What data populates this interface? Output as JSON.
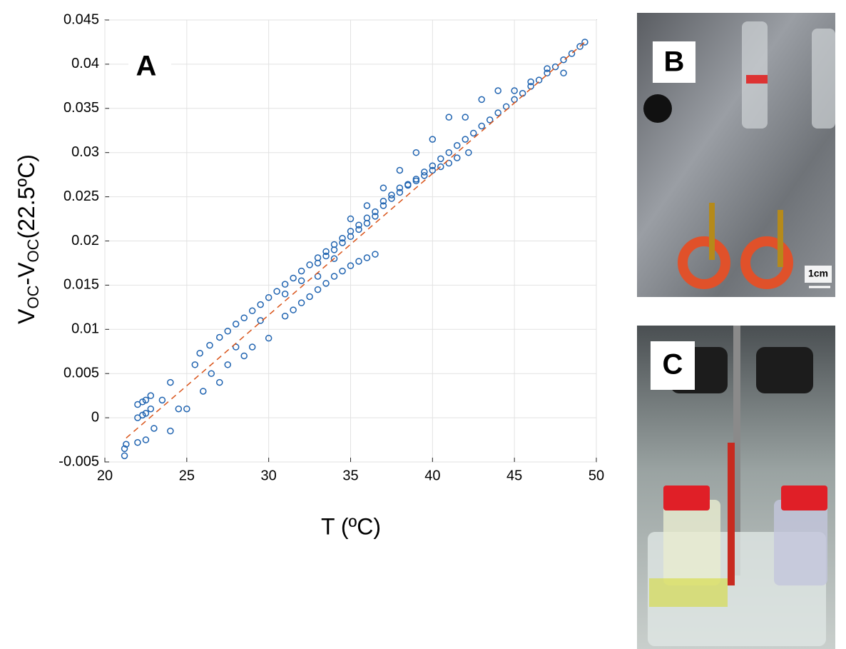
{
  "chart_data": {
    "type": "scatter",
    "annotations": [
      "A"
    ],
    "x_label": "T (ºC)",
    "y_label_parts": [
      "V",
      "OC",
      "-V",
      "OC",
      "(22.5ºC)"
    ],
    "xlim": [
      20,
      50
    ],
    "xticks": [
      20,
      25,
      30,
      35,
      40,
      45,
      50
    ],
    "ylim": [
      -0.005,
      0.045
    ],
    "yticks": [
      -0.005,
      0,
      0.005,
      0.01,
      0.015,
      0.02,
      0.025,
      0.03,
      0.035,
      0.04,
      0.045
    ],
    "grid": true,
    "series": [
      {
        "type": "scatter",
        "color": "#1f63b0",
        "x": [
          25.8,
          26.4,
          27,
          27.5,
          28,
          28.5,
          29,
          29.5,
          30,
          30.5,
          31,
          31.5,
          32,
          32.5,
          33,
          33.5,
          34,
          34.5,
          35,
          35.5,
          36,
          36.5,
          37,
          37.5,
          38,
          38.5,
          39,
          39.5,
          40,
          40.5,
          41,
          41.5,
          42,
          42.5,
          43,
          43.5,
          44,
          44.5,
          45,
          45.5,
          46,
          46.5,
          47,
          47.5,
          48,
          48.5,
          49,
          49.3,
          33,
          33.5,
          34,
          34.5,
          35,
          35.5,
          36,
          36.5,
          37,
          37.5,
          38,
          38.5,
          39,
          39.5,
          40,
          40.5,
          41,
          41.5,
          42.2,
          31,
          31.5,
          32,
          32.5,
          33,
          33.5,
          34,
          34.5,
          35,
          35.5,
          36,
          36.5,
          21.2,
          21.2,
          21.3,
          22,
          22.3,
          22.5,
          22.8,
          22,
          22.3,
          22.5,
          22.8,
          22,
          22.5,
          23,
          23.5,
          24,
          24,
          24.5,
          25,
          25.5,
          26,
          26.5,
          27,
          27.5,
          28,
          28.5,
          29,
          29.5,
          30,
          31,
          32,
          33,
          34,
          35,
          36,
          37,
          38,
          39,
          40,
          41,
          42,
          43,
          44,
          45,
          46,
          47,
          48
        ],
        "values": [
          0.0073,
          0.0082,
          0.0091,
          0.0098,
          0.0106,
          0.0113,
          0.0121,
          0.0128,
          0.0136,
          0.0143,
          0.0151,
          0.0158,
          0.0166,
          0.0173,
          0.0181,
          0.0188,
          0.0196,
          0.0203,
          0.0211,
          0.0218,
          0.0226,
          0.0233,
          0.024,
          0.0248,
          0.0255,
          0.0263,
          0.027,
          0.0278,
          0.0285,
          0.0293,
          0.03,
          0.0308,
          0.0315,
          0.0322,
          0.033,
          0.0337,
          0.0345,
          0.0352,
          0.036,
          0.0367,
          0.0375,
          0.0382,
          0.039,
          0.0397,
          0.0405,
          0.0412,
          0.042,
          0.0425,
          0.0175,
          0.0183,
          0.019,
          0.0198,
          0.0205,
          0.0213,
          0.022,
          0.0228,
          0.0245,
          0.0252,
          0.026,
          0.0264,
          0.0268,
          0.0274,
          0.028,
          0.0284,
          0.0288,
          0.0294,
          0.03,
          0.0115,
          0.0122,
          0.013,
          0.0137,
          0.0145,
          0.0152,
          0.016,
          0.0166,
          0.0172,
          0.0177,
          0.0181,
          0.0185,
          -0.0043,
          -0.0035,
          -0.003,
          0.0015,
          0.0018,
          0.002,
          0.0025,
          0,
          0.0003,
          0.0005,
          0.001,
          -0.0028,
          -0.0025,
          -0.0012,
          0.002,
          0.004,
          -0.0015,
          0.001,
          0.001,
          0.006,
          0.003,
          0.005,
          0.004,
          0.006,
          0.008,
          0.007,
          0.008,
          0.011,
          0.009,
          0.014,
          0.0155,
          0.016,
          0.018,
          0.0225,
          0.024,
          0.026,
          0.028,
          0.03,
          0.0315,
          0.034,
          0.034,
          0.036,
          0.037,
          0.037,
          0.038,
          0.0395,
          0.039
        ]
      },
      {
        "type": "line",
        "color": "#d95319",
        "dashed": true,
        "x": [
          21.3,
          49.3
        ],
        "values": [
          -0.0023,
          0.0425
        ]
      }
    ]
  },
  "photos": {
    "b": {
      "label": "B",
      "scale_bar": "1cm"
    },
    "c": {
      "label": "C"
    }
  }
}
